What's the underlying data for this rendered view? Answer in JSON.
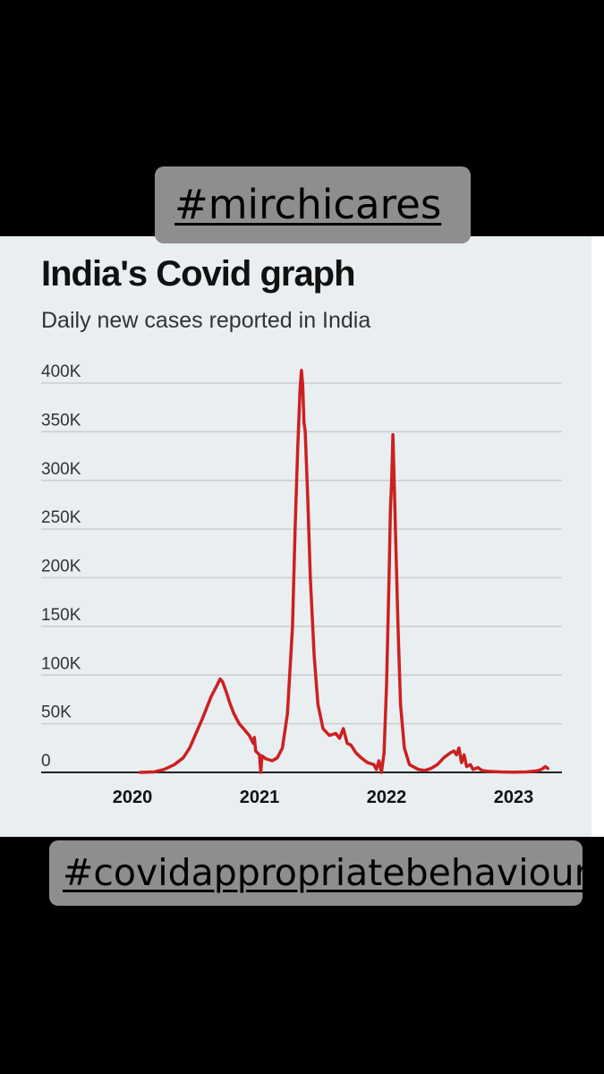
{
  "hashtags": {
    "top": "#mirchicares",
    "bottom": "#covidappropriatebehaviour"
  },
  "colors": {
    "line": "#cc2020",
    "grid": "#c9cdd1",
    "baseline": "#222222",
    "panel": "#e9eef1",
    "tag": "#8e8e8e"
  },
  "chart_data": {
    "type": "line",
    "title": "India's Covid graph",
    "subtitle": "Daily new cases reported in India",
    "xlabel": "",
    "ylabel": "",
    "grid": true,
    "legend": "none",
    "ylim": [
      0,
      400000
    ],
    "xlim": [
      2020.0,
      2023.3
    ],
    "y_ticks": [
      {
        "value": 400000,
        "label": "400K"
      },
      {
        "value": 350000,
        "label": "350K"
      },
      {
        "value": 300000,
        "label": "300K"
      },
      {
        "value": 250000,
        "label": "250K"
      },
      {
        "value": 200000,
        "label": "200K"
      },
      {
        "value": 150000,
        "label": "150K"
      },
      {
        "value": 100000,
        "label": "100K"
      },
      {
        "value": 50000,
        "label": "50K"
      },
      {
        "value": 0,
        "label": "0"
      }
    ],
    "x_ticks": [
      {
        "value": 2020.0,
        "label": "2020"
      },
      {
        "value": 2021.0,
        "label": "2021"
      },
      {
        "value": 2022.0,
        "label": "2022"
      },
      {
        "value": 2023.0,
        "label": "2023"
      }
    ],
    "series": [
      {
        "name": "Daily new cases",
        "points": [
          [
            2020.06,
            0
          ],
          [
            2020.17,
            500
          ],
          [
            2020.25,
            3000
          ],
          [
            2020.33,
            8000
          ],
          [
            2020.4,
            15000
          ],
          [
            2020.45,
            25000
          ],
          [
            2020.5,
            40000
          ],
          [
            2020.55,
            55000
          ],
          [
            2020.58,
            65000
          ],
          [
            2020.62,
            78000
          ],
          [
            2020.66,
            88000
          ],
          [
            2020.69,
            96000
          ],
          [
            2020.71,
            93000
          ],
          [
            2020.74,
            82000
          ],
          [
            2020.77,
            70000
          ],
          [
            2020.8,
            60000
          ],
          [
            2020.84,
            50000
          ],
          [
            2020.88,
            44000
          ],
          [
            2020.92,
            38000
          ],
          [
            2020.95,
            30000
          ],
          [
            2020.96,
            36000
          ],
          [
            2020.97,
            22000
          ],
          [
            2021.0,
            18000
          ],
          [
            2021.01,
            0
          ],
          [
            2021.02,
            17000
          ],
          [
            2021.05,
            14000
          ],
          [
            2021.1,
            12000
          ],
          [
            2021.14,
            15000
          ],
          [
            2021.18,
            25000
          ],
          [
            2021.22,
            60000
          ],
          [
            2021.26,
            150000
          ],
          [
            2021.28,
            250000
          ],
          [
            2021.3,
            330000
          ],
          [
            2021.32,
            395000
          ],
          [
            2021.33,
            413000
          ],
          [
            2021.34,
            398000
          ],
          [
            2021.35,
            360000
          ],
          [
            2021.36,
            350000
          ],
          [
            2021.38,
            280000
          ],
          [
            2021.4,
            200000
          ],
          [
            2021.43,
            120000
          ],
          [
            2021.46,
            70000
          ],
          [
            2021.5,
            45000
          ],
          [
            2021.55,
            38000
          ],
          [
            2021.6,
            40000
          ],
          [
            2021.63,
            35000
          ],
          [
            2021.66,
            45000
          ],
          [
            2021.69,
            30000
          ],
          [
            2021.72,
            28000
          ],
          [
            2021.76,
            20000
          ],
          [
            2021.8,
            15000
          ],
          [
            2021.85,
            10000
          ],
          [
            2021.9,
            8000
          ],
          [
            2021.92,
            3000
          ],
          [
            2021.94,
            12000
          ],
          [
            2021.96,
            0
          ],
          [
            2021.98,
            20000
          ],
          [
            2022.0,
            90000
          ],
          [
            2022.02,
            200000
          ],
          [
            2022.03,
            270000
          ],
          [
            2022.04,
            300000
          ],
          [
            2022.05,
            347000
          ],
          [
            2022.06,
            300000
          ],
          [
            2022.07,
            250000
          ],
          [
            2022.09,
            150000
          ],
          [
            2022.11,
            70000
          ],
          [
            2022.14,
            25000
          ],
          [
            2022.18,
            8000
          ],
          [
            2022.25,
            3000
          ],
          [
            2022.3,
            2000
          ],
          [
            2022.35,
            4000
          ],
          [
            2022.4,
            8000
          ],
          [
            2022.45,
            15000
          ],
          [
            2022.5,
            20000
          ],
          [
            2022.53,
            22000
          ],
          [
            2022.55,
            18000
          ],
          [
            2022.57,
            25000
          ],
          [
            2022.59,
            10000
          ],
          [
            2022.61,
            18000
          ],
          [
            2022.63,
            6000
          ],
          [
            2022.66,
            8000
          ],
          [
            2022.68,
            3000
          ],
          [
            2022.72,
            5000
          ],
          [
            2022.75,
            2000
          ],
          [
            2022.8,
            1000
          ],
          [
            2022.9,
            500
          ],
          [
            2023.0,
            300
          ],
          [
            2023.1,
            500
          ],
          [
            2023.18,
            1500
          ],
          [
            2023.22,
            3000
          ],
          [
            2023.25,
            6000
          ],
          [
            2023.27,
            4000
          ]
        ]
      }
    ]
  }
}
